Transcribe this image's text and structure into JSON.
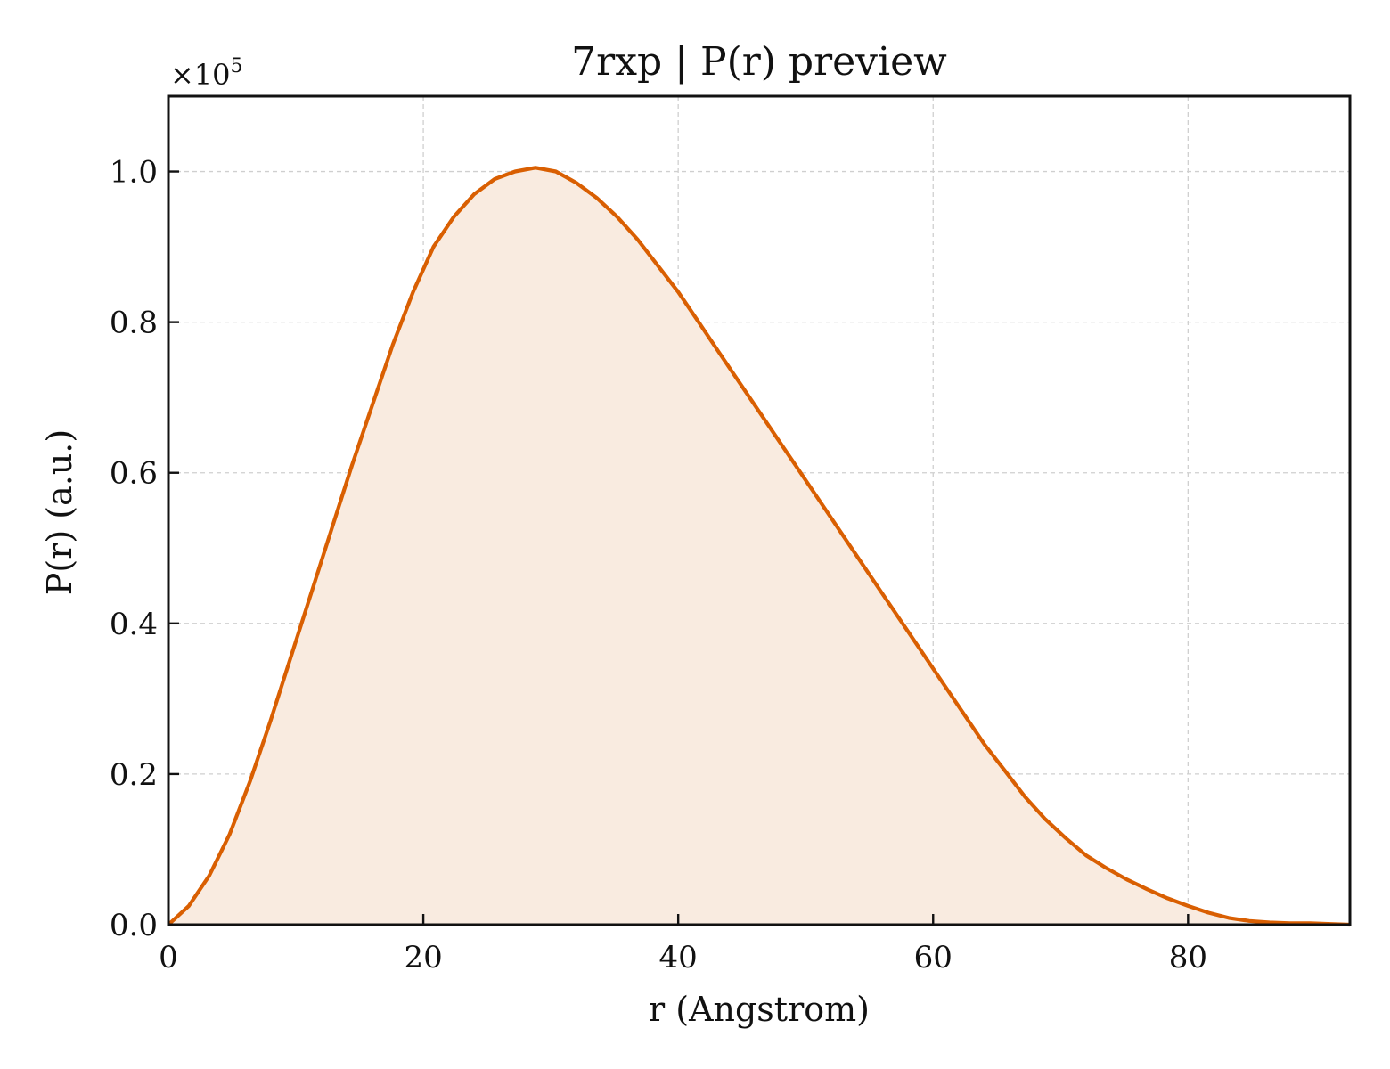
{
  "chart_data": {
    "type": "area",
    "title": "7rxp | P(r) preview",
    "xlabel": "r (Angstrom)",
    "ylabel": "P(r) (a.u.)",
    "y_multiplier": {
      "base": "×10",
      "exponent": "5"
    },
    "xlim": [
      0,
      92.7
    ],
    "ylim": [
      0,
      1.1
    ],
    "x_ticks": [
      0,
      20,
      40,
      60,
      80
    ],
    "x_tick_labels": [
      "0",
      "20",
      "40",
      "60",
      "80"
    ],
    "y_ticks": [
      0.0,
      0.2,
      0.4,
      0.6,
      0.8,
      1.0
    ],
    "y_tick_labels": [
      "0.0",
      "0.2",
      "0.4",
      "0.6",
      "0.8",
      "1.0"
    ],
    "grid": true,
    "legend": "none",
    "series": [
      {
        "color": "#d95f02",
        "fill_color": "#f9ebe0",
        "x": [
          0,
          1.6,
          3.2,
          4.8,
          6.4,
          8.0,
          9.6,
          11.2,
          12.8,
          14.4,
          16.0,
          17.6,
          19.2,
          20.8,
          22.4,
          24.0,
          25.6,
          27.2,
          28.8,
          30.4,
          32.0,
          33.6,
          35.2,
          36.8,
          38.4,
          40.0,
          41.6,
          43.2,
          44.8,
          46.4,
          48.0,
          49.6,
          51.2,
          52.8,
          54.4,
          56.0,
          57.6,
          59.2,
          60.8,
          62.4,
          64.0,
          65.6,
          67.2,
          68.8,
          70.4,
          72.0,
          73.6,
          75.2,
          76.8,
          78.4,
          80.0,
          81.6,
          83.2,
          84.8,
          86.4,
          88.0,
          89.6,
          91.2,
          92.7
        ],
        "y": [
          0.0,
          0.025,
          0.065,
          0.12,
          0.19,
          0.27,
          0.355,
          0.44,
          0.525,
          0.61,
          0.69,
          0.77,
          0.84,
          0.9,
          0.94,
          0.97,
          0.99,
          1.0,
          1.005,
          1.0,
          0.985,
          0.965,
          0.94,
          0.91,
          0.875,
          0.84,
          0.8,
          0.76,
          0.72,
          0.68,
          0.64,
          0.6,
          0.56,
          0.52,
          0.48,
          0.44,
          0.4,
          0.36,
          0.32,
          0.28,
          0.24,
          0.205,
          0.17,
          0.14,
          0.115,
          0.092,
          0.075,
          0.06,
          0.047,
          0.035,
          0.025,
          0.016,
          0.009,
          0.005,
          0.003,
          0.002,
          0.002,
          0.001,
          0.0
        ]
      }
    ]
  }
}
